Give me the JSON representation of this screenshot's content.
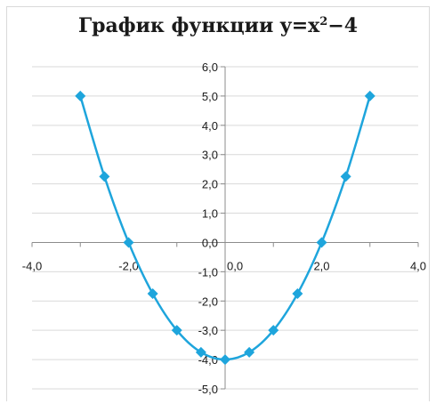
{
  "chart_data": {
    "type": "scatter",
    "title": {
      "main": "График функции y=x",
      "sup": "2",
      "tail": "−4"
    },
    "xlim": [
      -4,
      4
    ],
    "ylim": [
      -5,
      6
    ],
    "x_ticks": [
      {
        "value": -4,
        "label": "-4,0"
      },
      {
        "value": -2,
        "label": "-2,0"
      },
      {
        "value": 0,
        "label": "0,0"
      },
      {
        "value": 2,
        "label": "2,0"
      },
      {
        "value": 4,
        "label": "4,0"
      }
    ],
    "y_ticks": [
      {
        "value": 6,
        "label": "6,0"
      },
      {
        "value": 5,
        "label": "5,0"
      },
      {
        "value": 4,
        "label": "4,0"
      },
      {
        "value": 3,
        "label": "3,0"
      },
      {
        "value": 2,
        "label": "2,0"
      },
      {
        "value": 1,
        "label": "1,0"
      },
      {
        "value": 0,
        "label": "0,0"
      },
      {
        "value": -1,
        "label": "-1,0"
      },
      {
        "value": -2,
        "label": "-2,0"
      },
      {
        "value": -3,
        "label": "-3,0"
      },
      {
        "value": -4,
        "label": "-4,0"
      },
      {
        "value": -5,
        "label": "-5,0"
      }
    ],
    "grid": true,
    "series": [
      {
        "color": "#1ea5dc",
        "marker": "diamond",
        "smooth": true,
        "x": [
          -3,
          -2.5,
          -2,
          -1.5,
          -1,
          -0.5,
          0,
          0.5,
          1,
          1.5,
          2,
          2.5,
          3
        ],
        "y": [
          5,
          2.25,
          0,
          -1.75,
          -3,
          -3.75,
          -4,
          -3.75,
          -3,
          -1.75,
          0,
          2.25,
          5
        ]
      }
    ]
  }
}
